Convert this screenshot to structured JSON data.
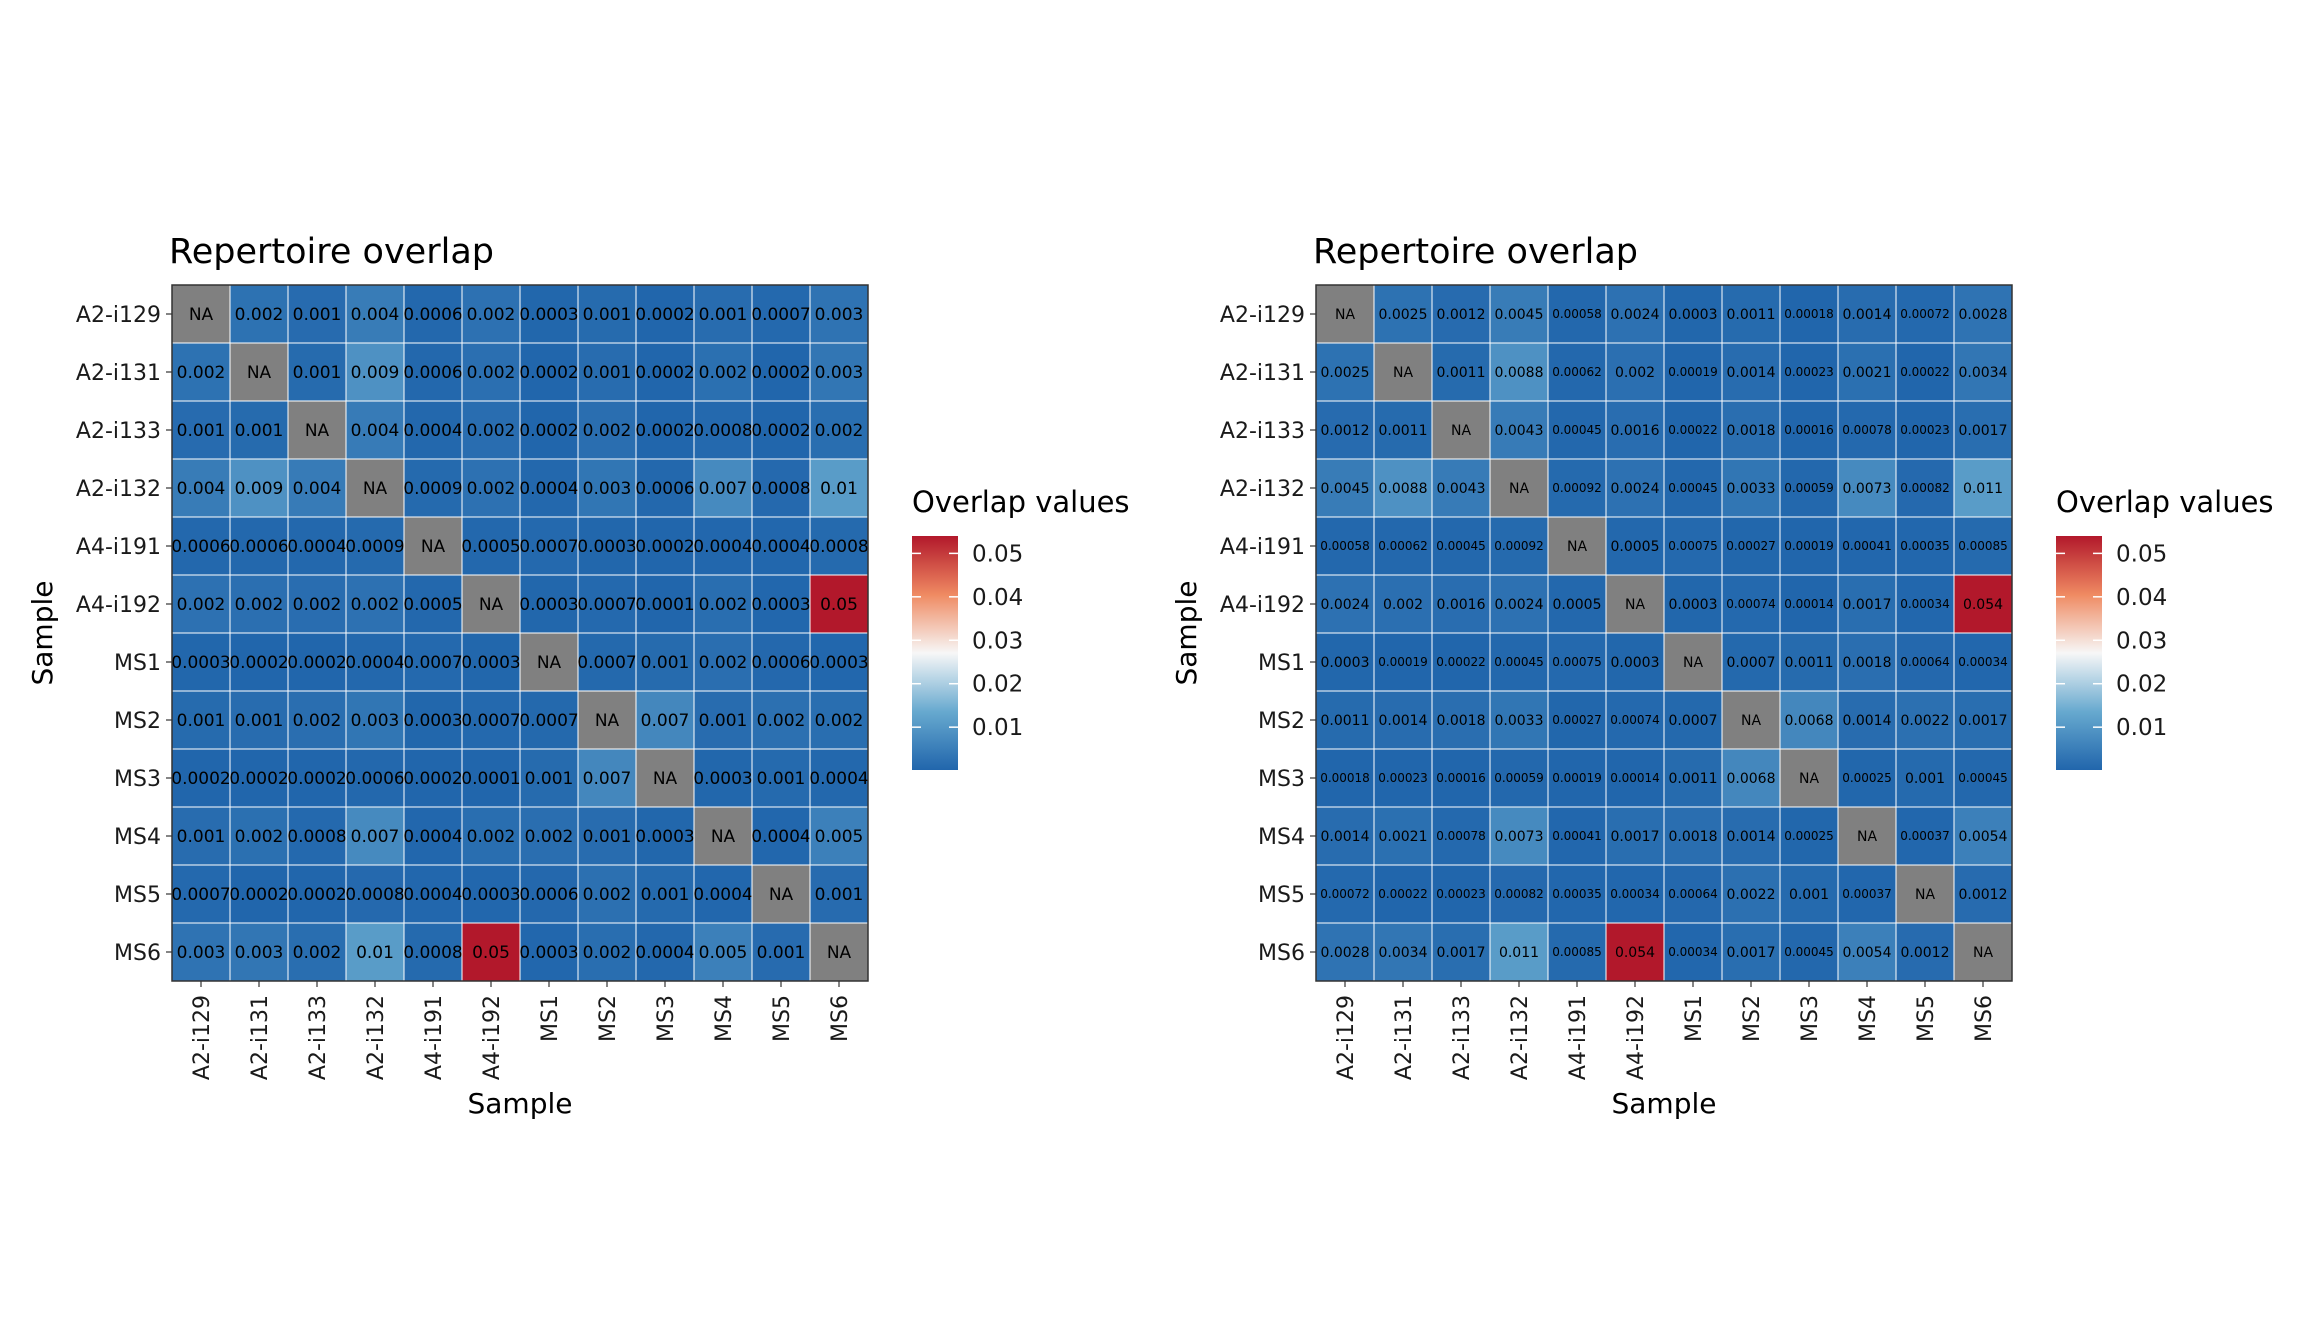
{
  "colors": {
    "low": "#2166ac",
    "mid_low": "#67a9cf",
    "mid": "#f7f7f7",
    "mid_high": "#ef8a62",
    "high": "#b2182b",
    "na": "#808080",
    "grid": "#ffffff",
    "panel_border": "#333333"
  },
  "chart_data": [
    {
      "type": "heatmap",
      "title": "Repertoire overlap",
      "xlabel": "Sample",
      "ylabel": "Sample",
      "rows": [
        "A2-i129",
        "A2-i131",
        "A2-i133",
        "A2-i132",
        "A4-i191",
        "A4-i192",
        "MS1",
        "MS2",
        "MS3",
        "MS4",
        "MS5",
        "MS6"
      ],
      "cols": [
        "A2-i129",
        "A2-i131",
        "A2-i133",
        "A2-i132",
        "A4-i191",
        "A4-i192",
        "MS1",
        "MS2",
        "MS3",
        "MS4",
        "MS5",
        "MS6"
      ],
      "values": [
        [
          null,
          0.0025,
          0.0012,
          0.0045,
          0.00058,
          0.0024,
          0.0003,
          0.0011,
          0.00018,
          0.0014,
          0.00072,
          0.0028
        ],
        [
          0.0025,
          null,
          0.0011,
          0.0088,
          0.00062,
          0.002,
          0.00019,
          0.0014,
          0.00023,
          0.0021,
          0.00022,
          0.0034
        ],
        [
          0.0012,
          0.0011,
          null,
          0.0043,
          0.00045,
          0.0016,
          0.00022,
          0.0018,
          0.00016,
          0.00078,
          0.00023,
          0.0017
        ],
        [
          0.0045,
          0.0088,
          0.0043,
          null,
          0.00092,
          0.0024,
          0.00045,
          0.0033,
          0.00059,
          0.0073,
          0.00082,
          0.011
        ],
        [
          0.00058,
          0.00062,
          0.00045,
          0.00092,
          null,
          0.0005,
          0.00075,
          0.00027,
          0.00019,
          0.00041,
          0.00035,
          0.00085
        ],
        [
          0.0024,
          0.002,
          0.0016,
          0.0024,
          0.0005,
          null,
          0.0003,
          0.00074,
          0.00014,
          0.0017,
          0.00034,
          0.054
        ],
        [
          0.0003,
          0.00019,
          0.00022,
          0.00045,
          0.00075,
          0.0003,
          null,
          0.0007,
          0.0011,
          0.0018,
          0.00064,
          0.00034
        ],
        [
          0.0011,
          0.0014,
          0.0018,
          0.0033,
          0.00027,
          0.00074,
          0.0007,
          null,
          0.0068,
          0.0014,
          0.0022,
          0.0017
        ],
        [
          0.00018,
          0.00023,
          0.00016,
          0.00059,
          0.00019,
          0.00014,
          0.0011,
          0.0068,
          null,
          0.00025,
          0.001,
          0.00045
        ],
        [
          0.0014,
          0.0021,
          0.00078,
          0.0073,
          0.00041,
          0.0017,
          0.0018,
          0.0014,
          0.00025,
          null,
          0.00037,
          0.0054
        ],
        [
          0.00072,
          0.00022,
          0.00023,
          0.00082,
          0.00035,
          0.00034,
          0.00064,
          0.0022,
          0.001,
          0.00037,
          null,
          0.0012
        ],
        [
          0.0028,
          0.0034,
          0.0017,
          0.011,
          0.00085,
          0.054,
          0.00034,
          0.0017,
          0.00045,
          0.0054,
          0.0012,
          null
        ]
      ],
      "cell_labels": [
        [
          "NA",
          "0.002",
          "0.001",
          "0.004",
          "0.0006",
          "0.002",
          "0.0003",
          "0.001",
          "0.0002",
          "0.001",
          "0.0007",
          "0.003"
        ],
        [
          "0.002",
          "NA",
          "0.001",
          "0.009",
          "0.0006",
          "0.002",
          "0.0002",
          "0.001",
          "0.0002",
          "0.002",
          "0.0002",
          "0.003"
        ],
        [
          "0.001",
          "0.001",
          "NA",
          "0.004",
          "0.0004",
          "0.002",
          "0.0002",
          "0.002",
          "0.0002",
          "0.0008",
          "0.0002",
          "0.002"
        ],
        [
          "0.004",
          "0.009",
          "0.004",
          "NA",
          "0.0009",
          "0.002",
          "0.0004",
          "0.003",
          "0.0006",
          "0.007",
          "0.0008",
          "0.01"
        ],
        [
          "0.0006",
          "0.0006",
          "0.0004",
          "0.0009",
          "NA",
          "0.0005",
          "0.0007",
          "0.0003",
          "0.0002",
          "0.0004",
          "0.0004",
          "0.0008"
        ],
        [
          "0.002",
          "0.002",
          "0.002",
          "0.002",
          "0.0005",
          "NA",
          "0.0003",
          "0.0007",
          "0.0001",
          "0.002",
          "0.0003",
          "0.05"
        ],
        [
          "0.0003",
          "0.0002",
          "0.0002",
          "0.0004",
          "0.0007",
          "0.0003",
          "NA",
          "0.0007",
          "0.001",
          "0.002",
          "0.0006",
          "0.0003"
        ],
        [
          "0.001",
          "0.001",
          "0.002",
          "0.003",
          "0.0003",
          "0.0007",
          "0.0007",
          "NA",
          "0.007",
          "0.001",
          "0.002",
          "0.002"
        ],
        [
          "0.0002",
          "0.0002",
          "0.0002",
          "0.0006",
          "0.0002",
          "0.0001",
          "0.001",
          "0.007",
          "NA",
          "0.0003",
          "0.001",
          "0.0004"
        ],
        [
          "0.001",
          "0.002",
          "0.0008",
          "0.007",
          "0.0004",
          "0.002",
          "0.002",
          "0.001",
          "0.0003",
          "NA",
          "0.0004",
          "0.005"
        ],
        [
          "0.0007",
          "0.0002",
          "0.0002",
          "0.0008",
          "0.0004",
          "0.0003",
          "0.0006",
          "0.002",
          "0.001",
          "0.0004",
          "NA",
          "0.001"
        ],
        [
          "0.003",
          "0.003",
          "0.002",
          "0.01",
          "0.0008",
          "0.05",
          "0.0003",
          "0.002",
          "0.0004",
          "0.005",
          "0.001",
          "NA"
        ]
      ],
      "legend": {
        "title": "Overlap values",
        "ticks": [
          "0.01",
          "0.02",
          "0.03",
          "0.04",
          "0.05"
        ],
        "tick_values": [
          0.01,
          0.02,
          0.03,
          0.04,
          0.05
        ],
        "range": [
          0.00014,
          0.054
        ]
      }
    },
    {
      "type": "heatmap",
      "title": "Repertoire overlap",
      "xlabel": "Sample",
      "ylabel": "Sample",
      "rows": [
        "A2-i129",
        "A2-i131",
        "A2-i133",
        "A2-i132",
        "A4-i191",
        "A4-i192",
        "MS1",
        "MS2",
        "MS3",
        "MS4",
        "MS5",
        "MS6"
      ],
      "cols": [
        "A2-i129",
        "A2-i131",
        "A2-i133",
        "A2-i132",
        "A4-i191",
        "A4-i192",
        "MS1",
        "MS2",
        "MS3",
        "MS4",
        "MS5",
        "MS6"
      ],
      "values": [
        [
          null,
          0.0025,
          0.0012,
          0.0045,
          0.00058,
          0.0024,
          0.0003,
          0.0011,
          0.00018,
          0.0014,
          0.00072,
          0.0028
        ],
        [
          0.0025,
          null,
          0.0011,
          0.0088,
          0.00062,
          0.002,
          0.00019,
          0.0014,
          0.00023,
          0.0021,
          0.00022,
          0.0034
        ],
        [
          0.0012,
          0.0011,
          null,
          0.0043,
          0.00045,
          0.0016,
          0.00022,
          0.0018,
          0.00016,
          0.00078,
          0.00023,
          0.0017
        ],
        [
          0.0045,
          0.0088,
          0.0043,
          null,
          0.00092,
          0.0024,
          0.00045,
          0.0033,
          0.00059,
          0.0073,
          0.00082,
          0.011
        ],
        [
          0.00058,
          0.00062,
          0.00045,
          0.00092,
          null,
          0.0005,
          0.00075,
          0.00027,
          0.00019,
          0.00041,
          0.00035,
          0.00085
        ],
        [
          0.0024,
          0.002,
          0.0016,
          0.0024,
          0.0005,
          null,
          0.0003,
          0.00074,
          0.00014,
          0.0017,
          0.00034,
          0.054
        ],
        [
          0.0003,
          0.00019,
          0.00022,
          0.00045,
          0.00075,
          0.0003,
          null,
          0.0007,
          0.0011,
          0.0018,
          0.00064,
          0.00034
        ],
        [
          0.0011,
          0.0014,
          0.0018,
          0.0033,
          0.00027,
          0.00074,
          0.0007,
          null,
          0.0068,
          0.0014,
          0.0022,
          0.0017
        ],
        [
          0.00018,
          0.00023,
          0.00016,
          0.00059,
          0.00019,
          0.00014,
          0.0011,
          0.0068,
          null,
          0.00025,
          0.001,
          0.00045
        ],
        [
          0.0014,
          0.0021,
          0.00078,
          0.0073,
          0.00041,
          0.0017,
          0.0018,
          0.0014,
          0.00025,
          null,
          0.00037,
          0.0054
        ],
        [
          0.00072,
          0.00022,
          0.00023,
          0.00082,
          0.00035,
          0.00034,
          0.00064,
          0.0022,
          0.001,
          0.00037,
          null,
          0.0012
        ],
        [
          0.0028,
          0.0034,
          0.0017,
          0.011,
          0.00085,
          0.054,
          0.00034,
          0.0017,
          0.00045,
          0.0054,
          0.0012,
          null
        ]
      ],
      "cell_labels": [
        [
          "NA",
          "0.0025",
          "0.0012",
          "0.0045",
          "0.00058",
          "0.0024",
          "0.0003",
          "0.0011",
          "0.00018",
          "0.0014",
          "0.00072",
          "0.0028"
        ],
        [
          "0.0025",
          "NA",
          "0.0011",
          "0.0088",
          "0.00062",
          "0.002",
          "0.00019",
          "0.0014",
          "0.00023",
          "0.0021",
          "0.00022",
          "0.0034"
        ],
        [
          "0.0012",
          "0.0011",
          "NA",
          "0.0043",
          "0.00045",
          "0.0016",
          "0.00022",
          "0.0018",
          "0.00016",
          "0.00078",
          "0.00023",
          "0.0017"
        ],
        [
          "0.0045",
          "0.0088",
          "0.0043",
          "NA",
          "0.00092",
          "0.0024",
          "0.00045",
          "0.0033",
          "0.00059",
          "0.0073",
          "0.00082",
          "0.011"
        ],
        [
          "0.00058",
          "0.00062",
          "0.00045",
          "0.00092",
          "NA",
          "0.0005",
          "0.00075",
          "0.00027",
          "0.00019",
          "0.00041",
          "0.00035",
          "0.00085"
        ],
        [
          "0.0024",
          "0.002",
          "0.0016",
          "0.0024",
          "0.0005",
          "NA",
          "0.0003",
          "0.00074",
          "0.00014",
          "0.0017",
          "0.00034",
          "0.054"
        ],
        [
          "0.0003",
          "0.00019",
          "0.00022",
          "0.00045",
          "0.00075",
          "0.0003",
          "NA",
          "0.0007",
          "0.0011",
          "0.0018",
          "0.00064",
          "0.00034"
        ],
        [
          "0.0011",
          "0.0014",
          "0.0018",
          "0.0033",
          "0.00027",
          "0.00074",
          "0.0007",
          "NA",
          "0.0068",
          "0.0014",
          "0.0022",
          "0.0017"
        ],
        [
          "0.00018",
          "0.00023",
          "0.00016",
          "0.00059",
          "0.00019",
          "0.00014",
          "0.0011",
          "0.0068",
          "NA",
          "0.00025",
          "0.001",
          "0.00045"
        ],
        [
          "0.0014",
          "0.0021",
          "0.00078",
          "0.0073",
          "0.00041",
          "0.0017",
          "0.0018",
          "0.0014",
          "0.00025",
          "NA",
          "0.00037",
          "0.0054"
        ],
        [
          "0.00072",
          "0.00022",
          "0.00023",
          "0.00082",
          "0.00035",
          "0.00034",
          "0.00064",
          "0.0022",
          "0.001",
          "0.00037",
          "NA",
          "0.0012"
        ],
        [
          "0.0028",
          "0.0034",
          "0.0017",
          "0.011",
          "0.00085",
          "0.054",
          "0.00034",
          "0.0017",
          "0.00045",
          "0.0054",
          "0.0012",
          "NA"
        ]
      ],
      "legend": {
        "title": "Overlap values",
        "ticks": [
          "0.01",
          "0.02",
          "0.03",
          "0.04",
          "0.05"
        ],
        "tick_values": [
          0.01,
          0.02,
          0.03,
          0.04,
          0.05
        ],
        "range": [
          0.00014,
          0.054
        ]
      }
    }
  ]
}
